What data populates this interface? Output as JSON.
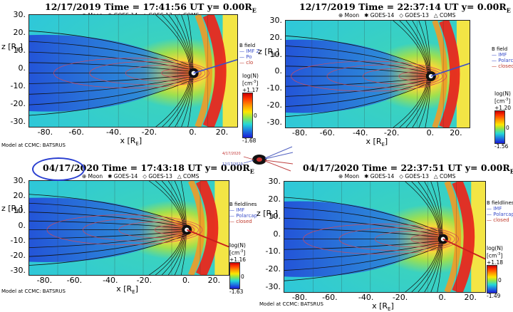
{
  "panels": [
    {
      "date": "12/17/2019",
      "rest": " Time = 17:41:56 UT y= 0.00R",
      "cbar_max": "+1.17",
      "cbar_min": "-1.68"
    },
    {
      "date": "12/17/2019",
      "rest": " Time = 22:37:14 UT y= 0.00R",
      "cbar_max": "+1.20",
      "cbar_min": "-1.56"
    },
    {
      "date": "04/17/2020",
      "rest": " Time = 17:43:18 UT y= 0.00R",
      "cbar_max": "+1.16",
      "cbar_min": "-1.63"
    },
    {
      "date": "04/17/2020",
      "rest": " Time = 22:37:51 UT y= 0.00R",
      "cbar_max": "+1.18",
      "cbar_min": "-1.49"
    }
  ],
  "legend": {
    "moon": "Moon",
    "goes14": "GOES-14",
    "goes13": "GOES-13",
    "coms": "COMS"
  },
  "yticks": [
    "30.",
    "20.",
    "10.",
    "0.",
    "-10.",
    "-20.",
    "-30."
  ],
  "xticks": [
    "-80.",
    "-60.",
    "-40.",
    "-20.",
    "0.",
    "20."
  ],
  "xlabel": "x [R",
  "xlabel_sub": "E",
  "ylabel": "z [R",
  "ylabel_sub": "E",
  "subscript_E": "E",
  "bfield_top": {
    "title": "B field",
    "l1": "IMF Z",
    "l2": "Po",
    "l3": "clo"
  },
  "bfield_top_right": {
    "title": "B field",
    "l1": "IMF",
    "l2": "Polarco",
    "l3": "closed"
  },
  "bfield_bottom": {
    "title": "B fieldlines",
    "l1": "IMF",
    "l2": "Polarcap",
    "l3": "closed"
  },
  "cbar_label": "log(N)",
  "cbar_unit": "[cm",
  "cbar_unit_sup": "-3",
  "cbar_mid": "0",
  "model_text": "Model at CCMC: BATSRUS",
  "inset": {
    "date1": "4/17/2020",
    "date2": "12/17/2019"
  },
  "colors": {
    "background_cyan": "#2fd3d3",
    "deep_blue": "#1f2bd0",
    "red_front": "#e8281e",
    "yellow": "#f4e84a",
    "highlight_circle": "#2a3fd0"
  }
}
